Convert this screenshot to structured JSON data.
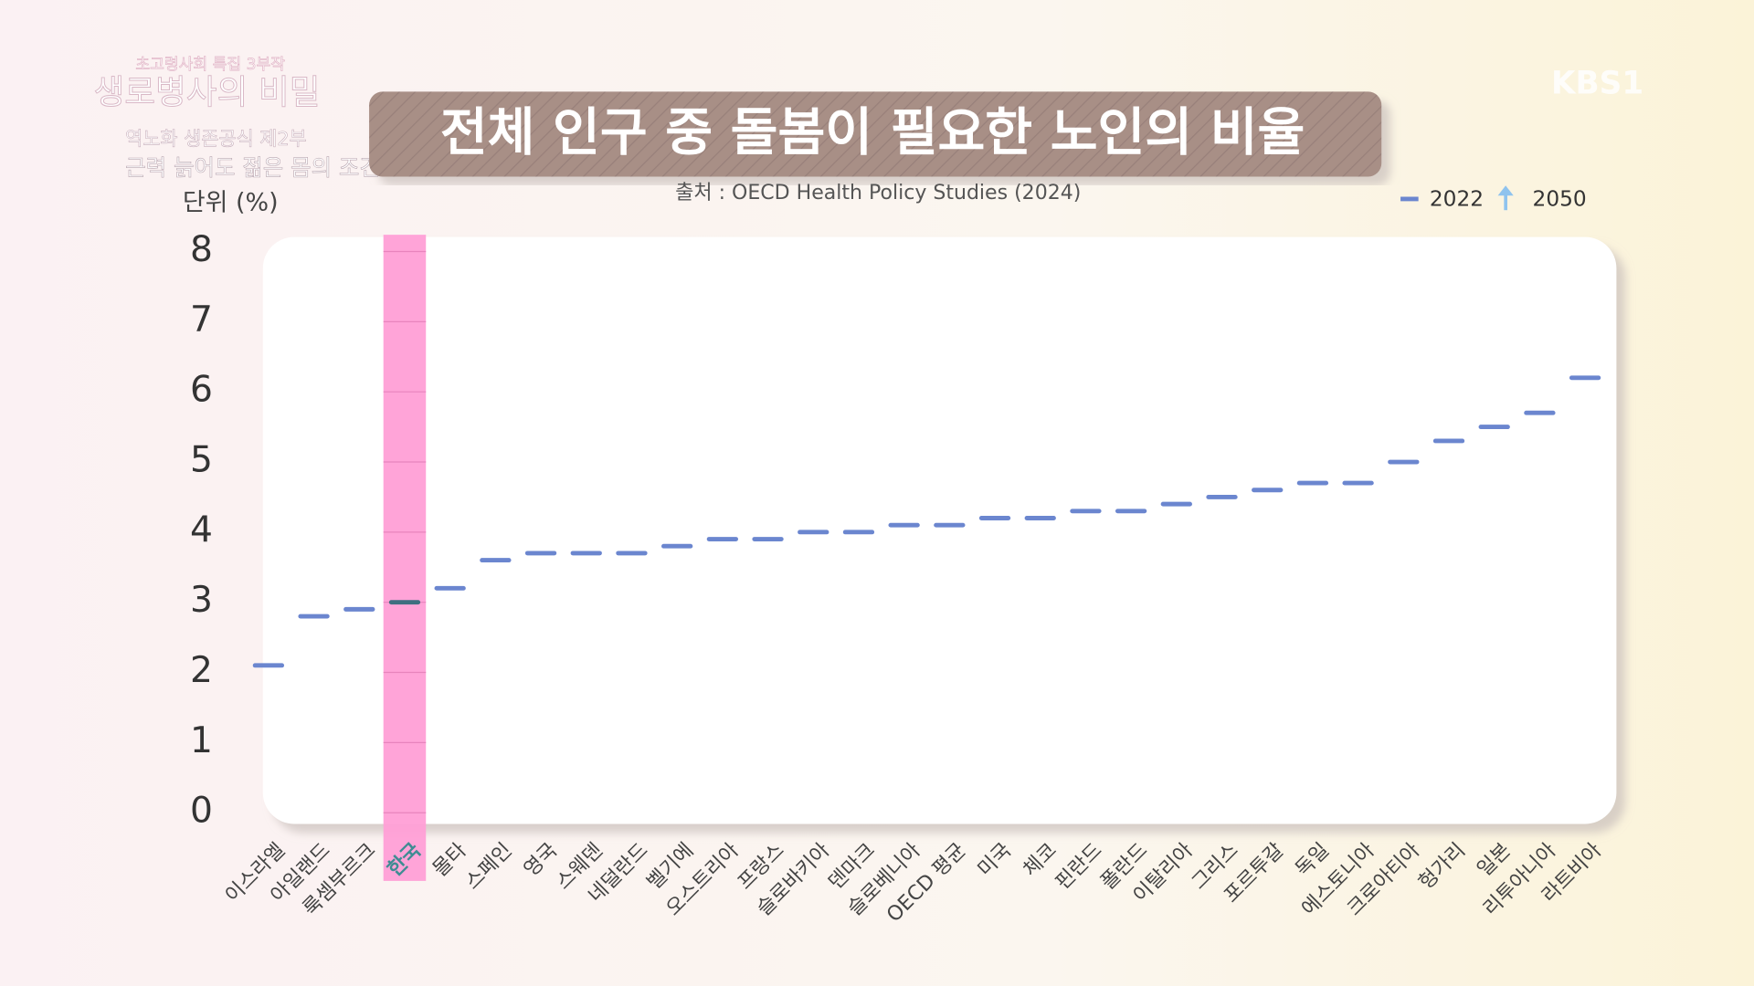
{
  "header": {
    "series_label": "초고령사회 특집 3부작",
    "program": "생로병사의 비밀",
    "episode": "역노화 생존공식 제2부",
    "episode_title": "근력 늙어도 젊은 몸의 조건",
    "channel": "KBS1"
  },
  "chart_data": {
    "type": "dash",
    "title": "전체 인구 중 돌봄이 필요한 노인의 비율",
    "subtitle": "출처 : OECD Health Policy Studies (2024)",
    "y_label": "단위 (%)",
    "categories": [
      "이스라엘",
      "아일랜드",
      "룩셈부르크",
      "한국",
      "몰타",
      "스페인",
      "영국",
      "스웨덴",
      "네덜란드",
      "벨기에",
      "오스트리아",
      "프랑스",
      "슬로바키아",
      "덴마크",
      "슬로베니아",
      "OECD 평균",
      "미국",
      "체코",
      "핀란드",
      "폴란드",
      "이탈리아",
      "그리스",
      "포르투갈",
      "독일",
      "에스토니아",
      "크로아티아",
      "헝가리",
      "일본",
      "리투아니아",
      "라트비아"
    ],
    "series": [
      {
        "name": "2022",
        "color": "#6b86cf",
        "values": [
          2.1,
          2.8,
          2.9,
          3.0,
          3.2,
          3.6,
          3.7,
          3.7,
          3.7,
          3.8,
          3.9,
          3.9,
          4.0,
          4.0,
          4.1,
          4.1,
          4.2,
          4.2,
          4.3,
          4.3,
          4.4,
          4.5,
          4.6,
          4.7,
          4.7,
          5.0,
          5.3,
          5.5,
          5.7,
          6.2
        ]
      },
      {
        "name": "2050",
        "color": "#8fc3ee",
        "values": [
          null,
          null,
          null,
          null,
          null,
          null,
          null,
          null,
          null,
          null,
          null,
          null,
          null,
          null,
          null,
          null,
          null,
          null,
          null,
          null,
          null,
          null,
          null,
          null,
          null,
          null,
          null,
          null,
          null,
          null
        ]
      }
    ],
    "ylim": [
      0,
      8
    ],
    "yticks": [
      0,
      1,
      2,
      3,
      4,
      5,
      6,
      7,
      8
    ],
    "grid": true,
    "highlight": {
      "category_index": 3,
      "color": "#ff9fd6"
    },
    "legend_position": "top-right"
  }
}
